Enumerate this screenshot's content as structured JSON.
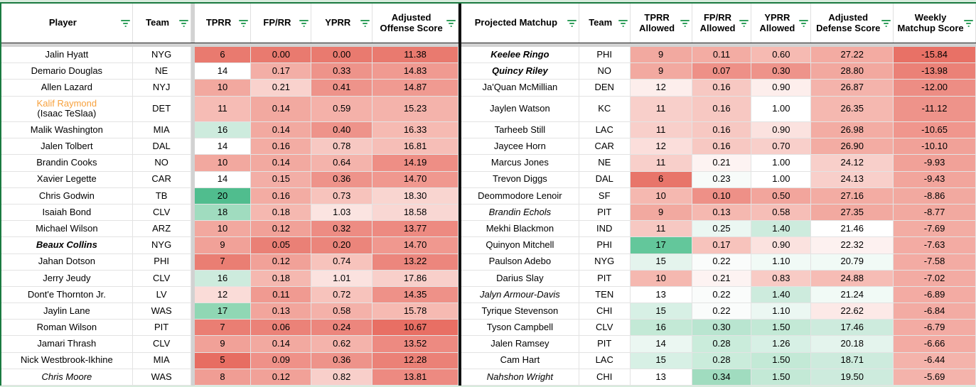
{
  "colors": {
    "accent_green_line": "#1a7a40",
    "strip_green": "#d8ecdd",
    "tables_divider_black": "#111111",
    "freeze_gray": "#d2d2d2",
    "filter_icon_green": "#2f9e5b",
    "player_highlight_orange": "#f7a13d"
  },
  "left_table": {
    "columns": [
      {
        "label": "Player"
      },
      {
        "label": "Team"
      },
      {
        "label": "TPRR"
      },
      {
        "label": "FP/RR"
      },
      {
        "label": "YPRR"
      },
      {
        "label": "Adjusted Offense Score"
      }
    ],
    "rows": [
      {
        "name": "Jalin Hyatt",
        "team": "NYG",
        "vals": [
          {
            "v": "6",
            "bg": "#e97a6f"
          },
          {
            "v": "0.00",
            "bg": "#e97a6f"
          },
          {
            "v": "0.00",
            "bg": "#e97a6f"
          },
          {
            "v": "11.38",
            "bg": "#e97a6f"
          }
        ]
      },
      {
        "name": "Demario Douglas",
        "team": "NE",
        "vals": [
          {
            "v": "14",
            "bg": "#ffffff"
          },
          {
            "v": "0.17",
            "bg": "#f3aea6"
          },
          {
            "v": "0.33",
            "bg": "#ee938a"
          },
          {
            "v": "14.83",
            "bg": "#f09a91"
          }
        ]
      },
      {
        "name": "Allen Lazard",
        "team": "NYJ",
        "vals": [
          {
            "v": "10",
            "bg": "#f2a89f"
          },
          {
            "v": "0.21",
            "bg": "#f9d2cd"
          },
          {
            "v": "0.41",
            "bg": "#ee938a"
          },
          {
            "v": "14.87",
            "bg": "#f09a91"
          }
        ]
      },
      {
        "name": "Kalif Raymond",
        "name2": "(Isaac TeSlaa)",
        "style": "orange",
        "tall": true,
        "team": "DET",
        "vals": [
          {
            "v": "11",
            "bg": "#f6bcb5"
          },
          {
            "v": "0.14",
            "bg": "#f2a9a0"
          },
          {
            "v": "0.59",
            "bg": "#f4b1a9"
          },
          {
            "v": "15.23",
            "bg": "#f4b3ab"
          }
        ]
      },
      {
        "name": "Malik Washington",
        "team": "MIA",
        "vals": [
          {
            "v": "16",
            "bg": "#cdebdd"
          },
          {
            "v": "0.14",
            "bg": "#f2a9a0"
          },
          {
            "v": "0.40",
            "bg": "#ee938a"
          },
          {
            "v": "16.33",
            "bg": "#f6bab2"
          }
        ]
      },
      {
        "name": "Jalen Tolbert",
        "team": "DAL",
        "vals": [
          {
            "v": "14",
            "bg": "#ffffff"
          },
          {
            "v": "0.16",
            "bg": "#f3aca3"
          },
          {
            "v": "0.78",
            "bg": "#f7c8c2"
          },
          {
            "v": "16.81",
            "bg": "#f6beb7"
          }
        ]
      },
      {
        "name": "Brandin Cooks",
        "team": "NO",
        "vals": [
          {
            "v": "10",
            "bg": "#f2a89f"
          },
          {
            "v": "0.14",
            "bg": "#f2a9a0"
          },
          {
            "v": "0.64",
            "bg": "#f4b3ab"
          },
          {
            "v": "14.19",
            "bg": "#ee8e85"
          }
        ]
      },
      {
        "name": "Xavier Legette",
        "team": "CAR",
        "vals": [
          {
            "v": "14",
            "bg": "#ffffff"
          },
          {
            "v": "0.15",
            "bg": "#f3aea6"
          },
          {
            "v": "0.36",
            "bg": "#ee938a"
          },
          {
            "v": "14.70",
            "bg": "#f0988f"
          }
        ]
      },
      {
        "name": "Chris Godwin",
        "team": "TB",
        "vals": [
          {
            "v": "20",
            "bg": "#50bd8e"
          },
          {
            "v": "0.16",
            "bg": "#f3aca3"
          },
          {
            "v": "0.73",
            "bg": "#f7c3bc"
          },
          {
            "v": "18.30",
            "bg": "#f9d5d0"
          }
        ]
      },
      {
        "name": "Isaiah Bond",
        "team": "CLV",
        "vals": [
          {
            "v": "18",
            "bg": "#a0dcbf"
          },
          {
            "v": "0.18",
            "bg": "#f5b8b0"
          },
          {
            "v": "1.03",
            "bg": "#fbe4e1"
          },
          {
            "v": "18.58",
            "bg": "#f9d7d3"
          }
        ]
      },
      {
        "name": "Michael Wilson",
        "team": "ARZ",
        "vals": [
          {
            "v": "10",
            "bg": "#f2a89f"
          },
          {
            "v": "0.12",
            "bg": "#f1a198"
          },
          {
            "v": "0.32",
            "bg": "#ed8c83"
          },
          {
            "v": "13.77",
            "bg": "#ed8a81"
          }
        ]
      },
      {
        "name": "Beaux Collins",
        "style": "bi",
        "team": "NYG",
        "vals": [
          {
            "v": "9",
            "bg": "#f1a198"
          },
          {
            "v": "0.05",
            "bg": "#ea8076"
          },
          {
            "v": "0.20",
            "bg": "#eb857b"
          },
          {
            "v": "14.70",
            "bg": "#f0988f"
          }
        ]
      },
      {
        "name": "Jahan Dotson",
        "team": "PHI",
        "vals": [
          {
            "v": "7",
            "bg": "#ea7e73"
          },
          {
            "v": "0.12",
            "bg": "#f1a198"
          },
          {
            "v": "0.74",
            "bg": "#f7c3bc"
          },
          {
            "v": "13.22",
            "bg": "#ec867d"
          }
        ]
      },
      {
        "name": "Jerry Jeudy",
        "team": "CLV",
        "vals": [
          {
            "v": "16",
            "bg": "#cdebdd"
          },
          {
            "v": "0.18",
            "bg": "#f5b8b0"
          },
          {
            "v": "1.01",
            "bg": "#fbe2df"
          },
          {
            "v": "17.86",
            "bg": "#f8cfca"
          }
        ]
      },
      {
        "name": "Dont'e Thornton Jr.",
        "team": "LV",
        "vals": [
          {
            "v": "12",
            "bg": "#fadcd8"
          },
          {
            "v": "0.11",
            "bg": "#f09a91"
          },
          {
            "v": "0.72",
            "bg": "#f7c3bc"
          },
          {
            "v": "14.35",
            "bg": "#ee9188"
          }
        ]
      },
      {
        "name": "Jaylin Lane",
        "team": "WAS",
        "vals": [
          {
            "v": "17",
            "bg": "#90d7b4"
          },
          {
            "v": "0.13",
            "bg": "#f2a59c"
          },
          {
            "v": "0.58",
            "bg": "#f4b1a9"
          },
          {
            "v": "15.78",
            "bg": "#f6bab2"
          }
        ]
      },
      {
        "name": "Roman Wilson",
        "team": "PIT",
        "vals": [
          {
            "v": "7",
            "bg": "#ea7e73"
          },
          {
            "v": "0.06",
            "bg": "#eb8278"
          },
          {
            "v": "0.24",
            "bg": "#ec867d"
          },
          {
            "v": "10.67",
            "bg": "#e86f64"
          }
        ]
      },
      {
        "name": "Jamari Thrash",
        "team": "CLV",
        "vals": [
          {
            "v": "9",
            "bg": "#f1a198"
          },
          {
            "v": "0.14",
            "bg": "#f2a9a0"
          },
          {
            "v": "0.62",
            "bg": "#f4b3ab"
          },
          {
            "v": "13.52",
            "bg": "#ed8a81"
          }
        ]
      },
      {
        "name": "Nick Westbrook-Ikhine",
        "team": "MIA",
        "vals": [
          {
            "v": "5",
            "bg": "#e76d62"
          },
          {
            "v": "0.09",
            "bg": "#ef9188"
          },
          {
            "v": "0.36",
            "bg": "#ee938a"
          },
          {
            "v": "12.28",
            "bg": "#eb8177"
          }
        ]
      },
      {
        "name": "Chris Moore",
        "style": "i",
        "team": "WAS",
        "vals": [
          {
            "v": "8",
            "bg": "#f09d94"
          },
          {
            "v": "0.12",
            "bg": "#f1a198"
          },
          {
            "v": "0.82",
            "bg": "#f8cfca"
          },
          {
            "v": "13.81",
            "bg": "#ed8a81"
          }
        ]
      }
    ]
  },
  "right_table": {
    "columns": [
      {
        "label": "Projected Matchup"
      },
      {
        "label": "Team"
      },
      {
        "label": "TPRR Allowed"
      },
      {
        "label": "FP/RR Allowed"
      },
      {
        "label": "YPRR Allowed"
      },
      {
        "label": "Adjusted Defense Score"
      },
      {
        "label": "Weekly Matchup Score"
      }
    ],
    "rows": [
      {
        "name": "Keelee Ringo",
        "style": "bi",
        "team": "PHI",
        "vals": [
          {
            "v": "9",
            "bg": "#f2a9a0"
          },
          {
            "v": "0.11",
            "bg": "#f3aca3"
          },
          {
            "v": "0.60",
            "bg": "#f6bab2"
          },
          {
            "v": "27.22",
            "bg": "#f3aba2"
          },
          {
            "v": "-15.84",
            "bg": "#e87166"
          }
        ]
      },
      {
        "name": "Quincy Riley",
        "style": "bi",
        "team": "NO",
        "vals": [
          {
            "v": "9",
            "bg": "#f2a9a0"
          },
          {
            "v": "0.07",
            "bg": "#ee9087"
          },
          {
            "v": "0.30",
            "bg": "#ee938a"
          },
          {
            "v": "28.80",
            "bg": "#f2a89f"
          },
          {
            "v": "-13.98",
            "bg": "#eb8177"
          }
        ]
      },
      {
        "name": "Ja'Quan McMillian",
        "team": "DEN",
        "vals": [
          {
            "v": "12",
            "bg": "#fdeeec"
          },
          {
            "v": "0.16",
            "bg": "#f7c8c2"
          },
          {
            "v": "0.90",
            "bg": "#fdeeec"
          },
          {
            "v": "26.87",
            "bg": "#f4b3ab"
          },
          {
            "v": "-12.00",
            "bg": "#ed8d84"
          }
        ]
      },
      {
        "name": "Jaylen Watson",
        "tall": true,
        "team": "KC",
        "vals": [
          {
            "v": "11",
            "bg": "#f8cfca"
          },
          {
            "v": "0.16",
            "bg": "#f7c8c2"
          },
          {
            "v": "1.00",
            "bg": "#ffffff"
          },
          {
            "v": "26.35",
            "bg": "#f5b8b0"
          },
          {
            "v": "-11.12",
            "bg": "#ee938a"
          }
        ]
      },
      {
        "name": "Tarheeb Still",
        "team": "LAC",
        "vals": [
          {
            "v": "11",
            "bg": "#f8cfca"
          },
          {
            "v": "0.16",
            "bg": "#f7c8c2"
          },
          {
            "v": "0.90",
            "bg": "#fbe2df"
          },
          {
            "v": "26.98",
            "bg": "#f3aca3"
          },
          {
            "v": "-10.65",
            "bg": "#f0968d"
          }
        ]
      },
      {
        "name": "Jaycee Horn",
        "team": "CAR",
        "vals": [
          {
            "v": "12",
            "bg": "#fbdedb"
          },
          {
            "v": "0.16",
            "bg": "#f7c8c2"
          },
          {
            "v": "0.70",
            "bg": "#f8cfca"
          },
          {
            "v": "26.90",
            "bg": "#f3aca3"
          },
          {
            "v": "-10.10",
            "bg": "#f1a198"
          }
        ]
      },
      {
        "name": "Marcus Jones",
        "team": "NE",
        "vals": [
          {
            "v": "11",
            "bg": "#f8cfca"
          },
          {
            "v": "0.21",
            "bg": "#fdf3f2"
          },
          {
            "v": "1.00",
            "bg": "#ffffff"
          },
          {
            "v": "24.12",
            "bg": "#f8cfca"
          },
          {
            "v": "-9.93",
            "bg": "#f1a198"
          }
        ]
      },
      {
        "name": "Trevon Diggs",
        "team": "DAL",
        "vals": [
          {
            "v": "6",
            "bg": "#e8756a"
          },
          {
            "v": "0.23",
            "bg": "#f7fbf9"
          },
          {
            "v": "1.00",
            "bg": "#ffffff"
          },
          {
            "v": "24.13",
            "bg": "#f8cfca"
          },
          {
            "v": "-9.43",
            "bg": "#f2a59c"
          }
        ]
      },
      {
        "name": "Deommodore Lenoir",
        "team": "SF",
        "vals": [
          {
            "v": "10",
            "bg": "#f5b8b0"
          },
          {
            "v": "0.10",
            "bg": "#ee9087"
          },
          {
            "v": "0.50",
            "bg": "#f2a59c"
          },
          {
            "v": "27.16",
            "bg": "#f3aca3"
          },
          {
            "v": "-8.86",
            "bg": "#f2a9a0"
          }
        ]
      },
      {
        "name": "Brandin Echols",
        "style": "i",
        "team": "PIT",
        "vals": [
          {
            "v": "9",
            "bg": "#f2a9a0"
          },
          {
            "v": "0.13",
            "bg": "#f5b8b0"
          },
          {
            "v": "0.58",
            "bg": "#f6beb7"
          },
          {
            "v": "27.35",
            "bg": "#f2a9a0"
          },
          {
            "v": "-8.77",
            "bg": "#f2a9a0"
          }
        ]
      },
      {
        "name": "Mekhi Blackmon",
        "team": "IND",
        "vals": [
          {
            "v": "11",
            "bg": "#f7c8c2"
          },
          {
            "v": "0.25",
            "bg": "#ebf7f2"
          },
          {
            "v": "1.40",
            "bg": "#cdebdd"
          },
          {
            "v": "21.46",
            "bg": "#ffffff"
          },
          {
            "v": "-7.69",
            "bg": "#f3aca3"
          }
        ]
      },
      {
        "name": "Quinyon Mitchell",
        "team": "PHI",
        "vals": [
          {
            "v": "17",
            "bg": "#63c79b"
          },
          {
            "v": "0.17",
            "bg": "#f7c3bc"
          },
          {
            "v": "0.90",
            "bg": "#fbe2df"
          },
          {
            "v": "22.32",
            "bg": "#fdf1f0"
          },
          {
            "v": "-7.63",
            "bg": "#f3aba3"
          }
        ]
      },
      {
        "name": "Paulson Adebo",
        "team": "NYG",
        "vals": [
          {
            "v": "15",
            "bg": "#e4f4ed"
          },
          {
            "v": "0.22",
            "bg": "#fafcfb"
          },
          {
            "v": "1.10",
            "bg": "#f1faf6"
          },
          {
            "v": "20.79",
            "bg": "#f1faf6"
          },
          {
            "v": "-7.58",
            "bg": "#f3aba3"
          }
        ]
      },
      {
        "name": "Darius Slay",
        "team": "PIT",
        "vals": [
          {
            "v": "10",
            "bg": "#f5b8b0"
          },
          {
            "v": "0.21",
            "bg": "#fdf3f2"
          },
          {
            "v": "0.83",
            "bg": "#f8cbc5"
          },
          {
            "v": "24.88",
            "bg": "#f6bcb5"
          },
          {
            "v": "-7.02",
            "bg": "#f3aba3"
          }
        ]
      },
      {
        "name": "Jalyn Armour-Davis",
        "style": "i",
        "team": "TEN",
        "vals": [
          {
            "v": "13",
            "bg": "#ffffff"
          },
          {
            "v": "0.22",
            "bg": "#fafcfb"
          },
          {
            "v": "1.40",
            "bg": "#cdebdd"
          },
          {
            "v": "21.24",
            "bg": "#f1faf6"
          },
          {
            "v": "-6.89",
            "bg": "#f3aba3"
          }
        ]
      },
      {
        "name": "Tyrique Stevenson",
        "team": "CHI",
        "vals": [
          {
            "v": "15",
            "bg": "#d7f0e5"
          },
          {
            "v": "0.22",
            "bg": "#fafcfb"
          },
          {
            "v": "1.10",
            "bg": "#ebf7f2"
          },
          {
            "v": "22.62",
            "bg": "#fce9e7"
          },
          {
            "v": "-6.84",
            "bg": "#f3aba3"
          }
        ]
      },
      {
        "name": "Tyson Campbell",
        "team": "CLV",
        "vals": [
          {
            "v": "16",
            "bg": "#c3e9d6"
          },
          {
            "v": "0.30",
            "bg": "#b9e5d0"
          },
          {
            "v": "1.50",
            "bg": "#c3e9d6"
          },
          {
            "v": "17.46",
            "bg": "#cdebdd"
          },
          {
            "v": "-6.79",
            "bg": "#f3aba3"
          }
        ]
      },
      {
        "name": "Jalen Ramsey",
        "team": "PIT",
        "vals": [
          {
            "v": "14",
            "bg": "#ebf7f2"
          },
          {
            "v": "0.28",
            "bg": "#caecdb"
          },
          {
            "v": "1.26",
            "bg": "#d7f0e5"
          },
          {
            "v": "20.18",
            "bg": "#e4f4ed"
          },
          {
            "v": "-6.66",
            "bg": "#f3aba3"
          }
        ]
      },
      {
        "name": "Cam Hart",
        "team": "LAC",
        "vals": [
          {
            "v": "15",
            "bg": "#d7f0e5"
          },
          {
            "v": "0.28",
            "bg": "#caecdb"
          },
          {
            "v": "1.50",
            "bg": "#c3e9d6"
          },
          {
            "v": "18.71",
            "bg": "#cdebdd"
          },
          {
            "v": "-6.44",
            "bg": "#f4b3ab"
          }
        ]
      },
      {
        "name": "Nahshon Wright",
        "style": "i",
        "team": "CHI",
        "vals": [
          {
            "v": "13",
            "bg": "#ffffff"
          },
          {
            "v": "0.34",
            "bg": "#a0dcbf"
          },
          {
            "v": "1.50",
            "bg": "#c3e9d6"
          },
          {
            "v": "19.50",
            "bg": "#cdebdd"
          },
          {
            "v": "-5.69",
            "bg": "#f4b3ab"
          }
        ]
      }
    ]
  }
}
